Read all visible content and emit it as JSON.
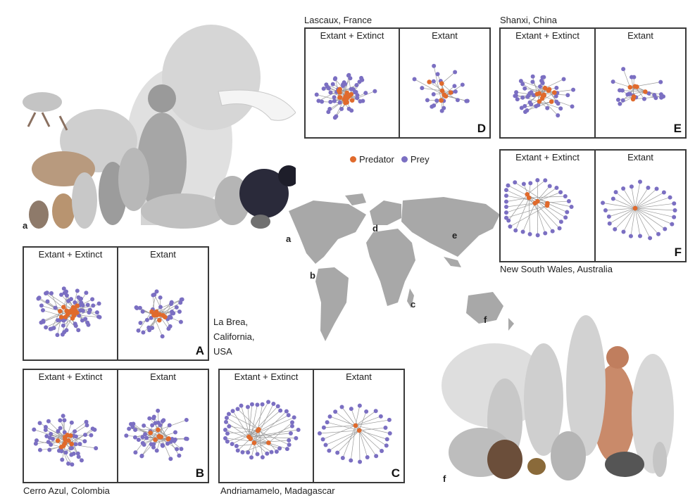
{
  "colors": {
    "predator": "#e06a2c",
    "prey": "#7b6fc2",
    "edge": "#9a9a9a",
    "frame": "#3a3a3a",
    "land": "#a8a8a8"
  },
  "column_labels": {
    "all": "Extant + Extinct",
    "extant": "Extant"
  },
  "legend": {
    "predator": "Predator",
    "prey": "Prey"
  },
  "illustration_labels": {
    "a": "a",
    "f": "f"
  },
  "map": {
    "labels": [
      "a",
      "b",
      "c",
      "d",
      "e",
      "f"
    ]
  },
  "panels": {
    "A": {
      "letter": "A",
      "site": "La Brea,\nCalifornia,\nUSA"
    },
    "B": {
      "letter": "B",
      "site": "Cerro Azul, Colombia"
    },
    "C": {
      "letter": "C",
      "site": "Andriamamelo, Madagascar"
    },
    "D": {
      "letter": "D",
      "site": "Lascaux, France"
    },
    "E": {
      "letter": "E",
      "site": "Shanxi, China"
    },
    "F": {
      "letter": "F",
      "site": "New South Wales, Australia"
    }
  },
  "illustration_icons": [
    "mammoth-icon",
    "camel-icon",
    "deer-icon",
    "bear-icon",
    "kangaroo-icon",
    "wombat-icon",
    "echidna-icon"
  ]
}
